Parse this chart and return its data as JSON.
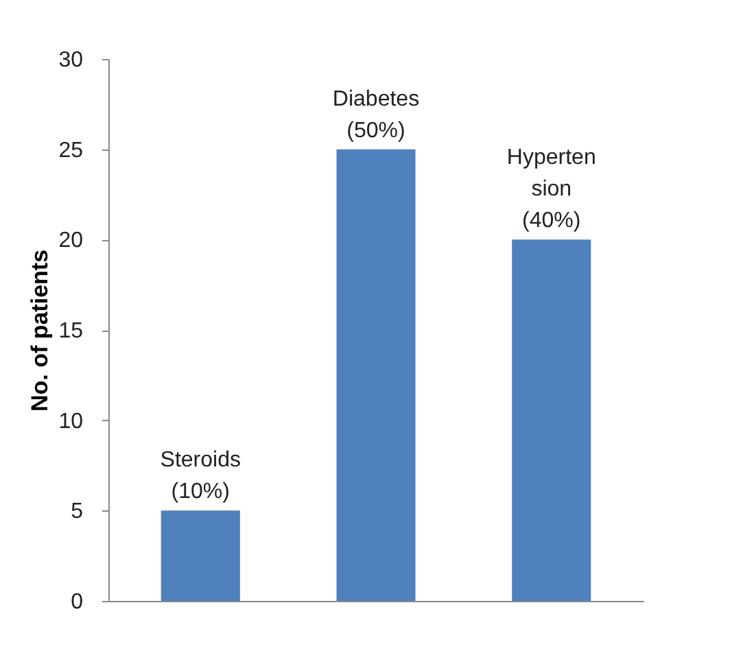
{
  "chart_data": {
    "type": "bar",
    "ylabel": "No. of patients",
    "categories": [
      "Steroids (10%)",
      "Diabetes (50%)",
      "Hyperten sion (40%)"
    ],
    "values": [
      5,
      25,
      20
    ],
    "color": "#4f81bd",
    "ylim": [
      0,
      30
    ],
    "yticks": [
      0,
      5,
      10,
      15,
      20,
      25,
      30
    ],
    "grid": false
  }
}
